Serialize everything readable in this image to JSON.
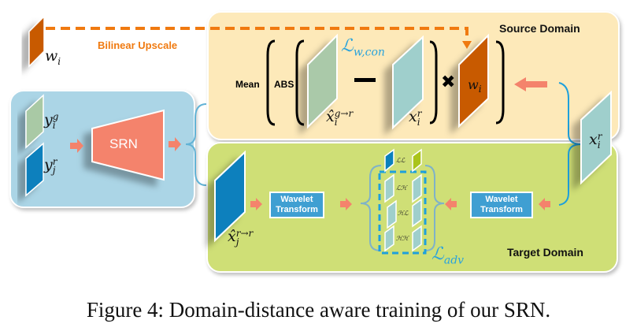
{
  "labels": {
    "bilinear_upscale": "Bilinear Upscale",
    "source_domain": "Source Domain",
    "target_domain": "Target Domain",
    "mean": "Mean",
    "abs": "ABS",
    "srn": "SRN",
    "wavelet_transform_1": "Wavelet Transform",
    "wavelet_transform_2": "Wavelet Transform"
  },
  "math": {
    "w_i_top": {
      "base": "w",
      "sub": "i"
    },
    "w_i_mid": {
      "base": "w",
      "sub": "i"
    },
    "y_i_g": {
      "base": "y",
      "sub": "i",
      "sup": "g"
    },
    "y_j_r": {
      "base": "y",
      "sub": "j",
      "sup": "r"
    },
    "x_hat_i_g_r": {
      "base": "x̂",
      "sub": "i",
      "sup": "g→r"
    },
    "x_i_r_src": {
      "base": "x",
      "sub": "i",
      "sup": "r"
    },
    "x_i_r_right": {
      "base": "x",
      "sub": "i",
      "sup": "r"
    },
    "x_hat_j_r_r": {
      "base": "x̂",
      "sub": "j",
      "sup": "r→r"
    },
    "loss_w_con": {
      "base": "ℒ",
      "sub": "w,con"
    },
    "loss_adv": {
      "base": "ℒ",
      "sub": "adv"
    }
  },
  "subbands": [
    "ℒℒ",
    "ℒℋ",
    "ℋℒ",
    "ℋℋ"
  ],
  "caption": "Figure 4: Domain-distance aware training of our SRN.",
  "colors": {
    "source_domain": "#fde9b9",
    "target_domain": "#cfdf76",
    "srn_block": "#abd5e6",
    "srn": "#f4836c",
    "weight_map": "#c85a00",
    "dashed_arrow": "#f07a10",
    "loss_text": "#2aa3dc",
    "wavelet_box": "#3f9fd2",
    "arrow": "#f4836c"
  }
}
